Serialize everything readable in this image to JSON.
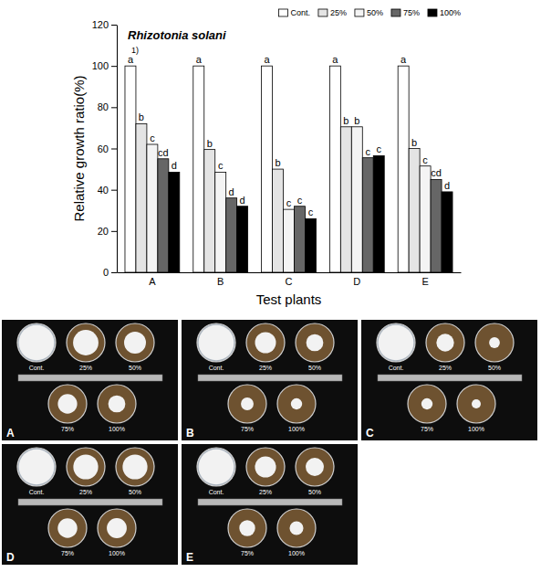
{
  "chart_data": {
    "type": "bar",
    "title": "Rhizotonia solani",
    "xlabel": "Test plants",
    "ylabel": "Relative growth ratio(%)",
    "categories": [
      "A",
      "B",
      "C",
      "D",
      "E"
    ],
    "series": [
      {
        "name": "Cont.",
        "color": "#ffffff",
        "values": [
          100,
          100,
          100,
          100,
          100
        ],
        "letters": [
          "a",
          "a",
          "a",
          "a",
          "a"
        ]
      },
      {
        "name": "25%",
        "color": "#e4e4e4",
        "values": [
          72,
          59.5,
          50,
          70.5,
          60
        ],
        "letters": [
          "b",
          "b",
          "b",
          "b",
          "b"
        ]
      },
      {
        "name": "50%",
        "color": "#f4f4f4",
        "values": [
          62,
          48.5,
          30.5,
          70.5,
          51.5
        ],
        "letters": [
          "c",
          "c",
          "c",
          "b",
          "c"
        ]
      },
      {
        "name": "75%",
        "color": "#666666",
        "values": [
          55,
          36,
          32,
          55.5,
          45
        ],
        "letters": [
          "cd",
          "d",
          "c",
          "c",
          "cd"
        ]
      },
      {
        "name": "100%",
        "color": "#000000",
        "values": [
          48.5,
          32,
          26,
          56.5,
          39
        ],
        "letters": [
          "d",
          "d",
          "c",
          "c",
          "d"
        ]
      }
    ],
    "annotations": [
      "1)"
    ],
    "ylim": [
      0,
      120
    ],
    "yticks": [
      0,
      20,
      40,
      60,
      80,
      100,
      120
    ],
    "legend": "top-right",
    "grid": false
  }
}
